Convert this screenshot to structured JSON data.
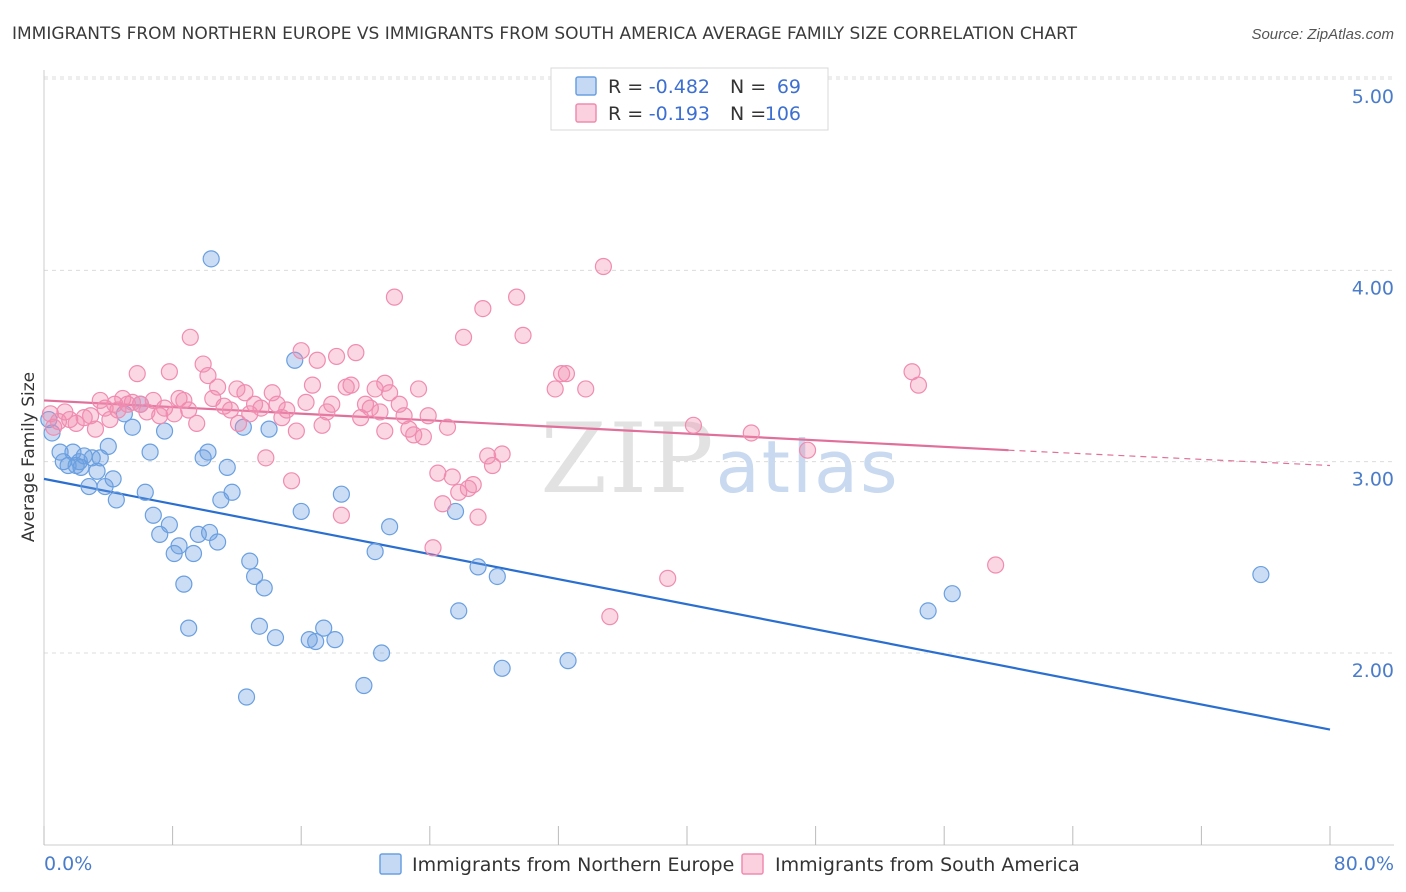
{
  "chart_data": {
    "type": "scatter",
    "title": "IMMIGRANTS FROM NORTHERN EUROPE VS IMMIGRANTS FROM SOUTH AMERICA AVERAGE FAMILY SIZE CORRELATION CHART",
    "source": "Source: ZipAtlas.com",
    "ylabel": "Average Family Size",
    "xlabel": "",
    "x_tick_labels": [
      "0.0%",
      "80.0%"
    ],
    "y_tick_labels": [
      "2.00",
      "3.00",
      "4.00",
      "5.00"
    ],
    "y_ticks": [
      2.0,
      3.0,
      4.0,
      5.0
    ],
    "xlim": [
      0,
      80
    ],
    "ylim": [
      1.0,
      5.1
    ],
    "grid": true,
    "watermark": "ZIPatlas",
    "legend_position": "top-center",
    "stats_legend": [
      {
        "r_label": "R =",
        "r_value": "-0.482",
        "n_label": "N =",
        "n_value": "69"
      },
      {
        "r_label": "R =",
        "r_value": "-0.193",
        "n_label": "N =",
        "n_value": "106"
      }
    ],
    "series": [
      {
        "name": "Immigrants from Northern Europe",
        "color": "#6a9fe0",
        "line_color": "#2a6fd0",
        "trend": {
          "x0": 0,
          "y0": 2.91,
          "x1": 80,
          "y1": 1.6
        },
        "points": [
          [
            0.3,
            3.22
          ],
          [
            0.5,
            3.15
          ],
          [
            1.0,
            3.05
          ],
          [
            1.2,
            3.0
          ],
          [
            1.5,
            2.98
          ],
          [
            1.8,
            3.05
          ],
          [
            2.0,
            2.98
          ],
          [
            2.3,
            2.97
          ],
          [
            2.5,
            3.03
          ],
          [
            2.8,
            2.87
          ],
          [
            3.0,
            3.02
          ],
          [
            3.3,
            2.95
          ],
          [
            3.5,
            3.02
          ],
          [
            3.8,
            2.87
          ],
          [
            4.0,
            3.08
          ],
          [
            4.3,
            2.91
          ],
          [
            4.5,
            2.8
          ],
          [
            5.0,
            3.25
          ],
          [
            5.5,
            3.18
          ],
          [
            6.0,
            3.3
          ],
          [
            6.3,
            2.84
          ],
          [
            6.6,
            3.05
          ],
          [
            6.8,
            2.72
          ],
          [
            7.2,
            2.62
          ],
          [
            7.5,
            3.16
          ],
          [
            7.8,
            2.67
          ],
          [
            8.1,
            2.52
          ],
          [
            8.4,
            2.56
          ],
          [
            8.7,
            2.36
          ],
          [
            9.0,
            2.13
          ],
          [
            9.3,
            2.52
          ],
          [
            9.6,
            2.62
          ],
          [
            9.9,
            3.02
          ],
          [
            10.2,
            3.05
          ],
          [
            10.3,
            2.63
          ],
          [
            10.4,
            4.06
          ],
          [
            10.8,
            2.58
          ],
          [
            11.0,
            2.8
          ],
          [
            11.4,
            2.97
          ],
          [
            11.7,
            2.84
          ],
          [
            12.4,
            3.18
          ],
          [
            12.8,
            2.48
          ],
          [
            13.1,
            2.4
          ],
          [
            13.4,
            2.14
          ],
          [
            13.7,
            2.34
          ],
          [
            14.0,
            3.17
          ],
          [
            14.4,
            2.08
          ],
          [
            15.6,
            3.53
          ],
          [
            16.0,
            2.74
          ],
          [
            16.5,
            2.07
          ],
          [
            16.9,
            2.06
          ],
          [
            17.4,
            2.13
          ],
          [
            18.1,
            2.07
          ],
          [
            18.5,
            2.83
          ],
          [
            19.9,
            1.83
          ],
          [
            20.6,
            2.53
          ],
          [
            21.0,
            2.0
          ],
          [
            21.5,
            2.66
          ],
          [
            25.6,
            2.74
          ],
          [
            25.8,
            2.22
          ],
          [
            27.0,
            2.45
          ],
          [
            28.2,
            2.4
          ],
          [
            28.5,
            1.92
          ],
          [
            32.6,
            1.96
          ],
          [
            55.0,
            2.22
          ],
          [
            56.5,
            2.31
          ],
          [
            75.7,
            2.41
          ],
          [
            12.6,
            1.77
          ],
          [
            2.2,
            3.0
          ]
        ]
      },
      {
        "name": "Immigrants from South America",
        "color": "#f08cb0",
        "line_color": "#e0709a",
        "trend": {
          "x0": 0,
          "y0": 3.32,
          "x1": 60,
          "y1": 3.06,
          "dash_x1": 80,
          "dash_y1": 2.98
        },
        "points": [
          [
            0.4,
            3.25
          ],
          [
            0.6,
            3.18
          ],
          [
            0.9,
            3.21
          ],
          [
            1.3,
            3.26
          ],
          [
            1.6,
            3.22
          ],
          [
            2.0,
            3.2
          ],
          [
            2.5,
            3.23
          ],
          [
            2.9,
            3.24
          ],
          [
            3.2,
            3.17
          ],
          [
            3.5,
            3.32
          ],
          [
            3.8,
            3.28
          ],
          [
            4.1,
            3.22
          ],
          [
            4.4,
            3.3
          ],
          [
            4.6,
            3.27
          ],
          [
            4.9,
            3.33
          ],
          [
            5.2,
            3.3
          ],
          [
            5.5,
            3.31
          ],
          [
            5.8,
            3.46
          ],
          [
            6.0,
            3.3
          ],
          [
            6.4,
            3.26
          ],
          [
            6.8,
            3.32
          ],
          [
            7.2,
            3.24
          ],
          [
            7.5,
            3.28
          ],
          [
            7.8,
            3.47
          ],
          [
            8.1,
            3.25
          ],
          [
            8.4,
            3.33
          ],
          [
            8.7,
            3.32
          ],
          [
            9.0,
            3.27
          ],
          [
            9.1,
            3.65
          ],
          [
            9.5,
            3.2
          ],
          [
            9.9,
            3.51
          ],
          [
            10.2,
            3.45
          ],
          [
            10.5,
            3.33
          ],
          [
            10.8,
            3.39
          ],
          [
            11.2,
            3.29
          ],
          [
            11.6,
            3.27
          ],
          [
            12.0,
            3.38
          ],
          [
            12.1,
            3.2
          ],
          [
            12.5,
            3.36
          ],
          [
            12.8,
            3.25
          ],
          [
            13.1,
            3.3
          ],
          [
            13.5,
            3.28
          ],
          [
            13.8,
            3.02
          ],
          [
            14.2,
            3.36
          ],
          [
            14.5,
            3.3
          ],
          [
            14.8,
            3.23
          ],
          [
            15.1,
            3.27
          ],
          [
            15.4,
            2.9
          ],
          [
            15.7,
            3.16
          ],
          [
            16.0,
            3.58
          ],
          [
            16.3,
            3.31
          ],
          [
            16.7,
            3.4
          ],
          [
            17.0,
            3.53
          ],
          [
            17.3,
            3.19
          ],
          [
            17.6,
            3.26
          ],
          [
            17.9,
            3.3
          ],
          [
            18.2,
            3.55
          ],
          [
            18.5,
            2.72
          ],
          [
            18.8,
            3.39
          ],
          [
            19.1,
            3.4
          ],
          [
            19.4,
            3.57
          ],
          [
            19.7,
            3.23
          ],
          [
            20.0,
            3.3
          ],
          [
            20.3,
            3.28
          ],
          [
            20.6,
            3.38
          ],
          [
            20.9,
            3.26
          ],
          [
            21.2,
            3.41
          ],
          [
            21.5,
            3.36
          ],
          [
            21.8,
            3.86
          ],
          [
            22.1,
            3.3
          ],
          [
            22.4,
            3.24
          ],
          [
            22.7,
            3.17
          ],
          [
            23.0,
            3.14
          ],
          [
            23.3,
            3.38
          ],
          [
            23.6,
            3.13
          ],
          [
            23.9,
            3.24
          ],
          [
            24.2,
            2.55
          ],
          [
            24.5,
            2.94
          ],
          [
            24.8,
            2.78
          ],
          [
            25.1,
            3.18
          ],
          [
            25.4,
            2.92
          ],
          [
            25.8,
            2.84
          ],
          [
            26.1,
            3.65
          ],
          [
            26.4,
            2.86
          ],
          [
            26.7,
            2.88
          ],
          [
            27.0,
            2.71
          ],
          [
            27.3,
            3.8
          ],
          [
            27.6,
            3.03
          ],
          [
            27.9,
            2.98
          ],
          [
            28.5,
            3.04
          ],
          [
            29.4,
            3.86
          ],
          [
            29.8,
            3.66
          ],
          [
            31.8,
            3.38
          ],
          [
            32.2,
            3.46
          ],
          [
            32.5,
            3.46
          ],
          [
            33.7,
            3.38
          ],
          [
            34.8,
            4.02
          ],
          [
            35.2,
            2.19
          ],
          [
            38.8,
            2.39
          ],
          [
            40.4,
            3.19
          ],
          [
            44.0,
            3.15
          ],
          [
            47.5,
            3.06
          ],
          [
            54.0,
            3.47
          ],
          [
            54.4,
            3.4
          ],
          [
            59.2,
            2.46
          ],
          [
            21.2,
            3.16
          ]
        ]
      }
    ]
  }
}
